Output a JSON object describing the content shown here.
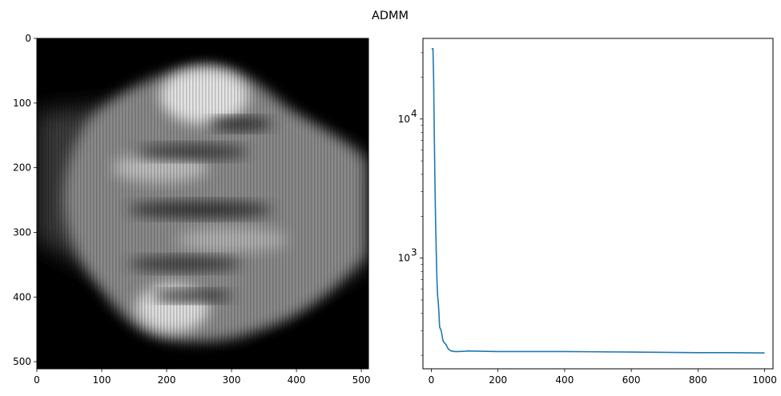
{
  "figure": {
    "title": "ADMM"
  },
  "chart_data": [
    {
      "type": "heatmap",
      "description_kind": "grayscale image",
      "colormap": "gray",
      "x_range": [
        0,
        511
      ],
      "y_range": [
        0,
        511
      ],
      "y_inverted": true,
      "x_ticks": [
        0,
        100,
        200,
        300,
        400,
        500
      ],
      "y_ticks": [
        0,
        100,
        200,
        300,
        400,
        500
      ],
      "x_tick_labels": [
        "0",
        "100",
        "200",
        "300",
        "400",
        "500"
      ],
      "y_tick_labels": [
        "0",
        "100",
        "200",
        "300",
        "400",
        "500"
      ]
    },
    {
      "type": "line",
      "yscale": "log",
      "xlim": [
        -25,
        1025
      ],
      "ylim": [
        160,
        38000
      ],
      "x_ticks": [
        0,
        200,
        400,
        600,
        800,
        1000
      ],
      "x_tick_labels": [
        "0",
        "200",
        "400",
        "600",
        "800",
        "1000"
      ],
      "y_major_ticks": [
        1000,
        10000
      ],
      "color": "#1f77b4",
      "series": [
        {
          "x": [
            1,
            5,
            7,
            9,
            11,
            13,
            15,
            17,
            19,
            21,
            23,
            25,
            30,
            35,
            40,
            45,
            50,
            55,
            60,
            70,
            80,
            100,
            110,
            150,
            200,
            250,
            300,
            400,
            500,
            600,
            700,
            800,
            900,
            1000
          ],
          "y": [
            32000,
            32000,
            20000,
            8000,
            3500,
            1800,
            1100,
            700,
            540,
            480,
            400,
            320,
            300,
            255,
            245,
            238,
            224,
            218,
            215,
            213,
            213,
            214,
            215,
            214,
            213,
            213,
            213,
            213,
            212,
            211,
            210,
            209,
            209,
            208
          ]
        }
      ]
    }
  ]
}
